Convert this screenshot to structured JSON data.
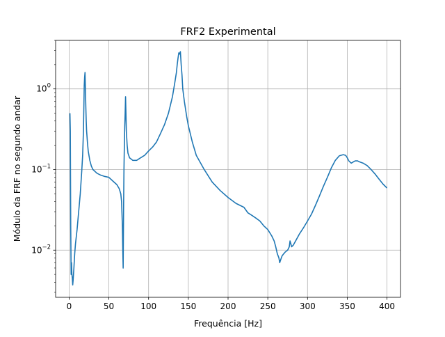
{
  "chart_data": {
    "type": "line",
    "title": "FRF2 Experimental",
    "xlabel": "Frequência [Hz]",
    "ylabel": "Módulo da FRF no segundo andar",
    "xlim": [
      -17,
      417
    ],
    "ylim": [
      0.0026,
      4.0
    ],
    "yscale": "log",
    "grid": true,
    "xticks": [
      0,
      50,
      100,
      150,
      200,
      250,
      300,
      350,
      400
    ],
    "xtick_labels": [
      "0",
      "50",
      "100",
      "150",
      "200",
      "250",
      "300",
      "350",
      "400"
    ],
    "yticks": [
      0.01,
      0.1,
      1
    ],
    "ytick_labels": [
      {
        "base": "10",
        "exp": "−2"
      },
      {
        "base": "10",
        "exp": "−1"
      },
      {
        "base": "10",
        "exp": "0"
      }
    ],
    "line_color": "#1f77b4",
    "series": [
      {
        "x": [
          1,
          1.5,
          2,
          2.5,
          3,
          3.5,
          4,
          4.5,
          5,
          6,
          7,
          8,
          10,
          12,
          14,
          16,
          17,
          18,
          19,
          19.5,
          20,
          20.5,
          21,
          21.5,
          22,
          23,
          24,
          26,
          28,
          30,
          35,
          40,
          45,
          50,
          55,
          60,
          63,
          65,
          66,
          67,
          67.5,
          68,
          68.5,
          69,
          69.5,
          70,
          70.5,
          71,
          71.5,
          72,
          73,
          74,
          76,
          78,
          80,
          85,
          90,
          95,
          100,
          105,
          110,
          115,
          120,
          125,
          130,
          133,
          135,
          136,
          137,
          138,
          139,
          140,
          141,
          142,
          143,
          145,
          148,
          150,
          155,
          160,
          170,
          180,
          190,
          200,
          210,
          220,
          225,
          230,
          235,
          240,
          245,
          250,
          255,
          258,
          260,
          262,
          263,
          264,
          265,
          266,
          268,
          270,
          272,
          275,
          277,
          278,
          279,
          280,
          282,
          285,
          290,
          295,
          300,
          305,
          310,
          315,
          320,
          325,
          330,
          335,
          340,
          345,
          348,
          350,
          352,
          355,
          358,
          360,
          363,
          365,
          370,
          375,
          380,
          385,
          390,
          395,
          400
        ],
        "y": [
          0.5,
          0.3,
          0.02,
          0.005,
          0.007,
          0.005,
          0.0045,
          0.0037,
          0.0042,
          0.006,
          0.009,
          0.012,
          0.018,
          0.03,
          0.05,
          0.1,
          0.15,
          0.3,
          1.1,
          1.4,
          1.6,
          1.0,
          0.6,
          0.4,
          0.3,
          0.22,
          0.17,
          0.13,
          0.11,
          0.1,
          0.09,
          0.085,
          0.082,
          0.08,
          0.072,
          0.065,
          0.058,
          0.05,
          0.04,
          0.02,
          0.01,
          0.006,
          0.03,
          0.1,
          0.2,
          0.35,
          0.5,
          0.8,
          0.5,
          0.3,
          0.2,
          0.16,
          0.14,
          0.135,
          0.13,
          0.13,
          0.14,
          0.15,
          0.17,
          0.19,
          0.22,
          0.28,
          0.36,
          0.5,
          0.8,
          1.2,
          1.6,
          2.0,
          2.4,
          2.8,
          2.7,
          2.9,
          2.0,
          1.5,
          1.0,
          0.7,
          0.45,
          0.35,
          0.22,
          0.15,
          0.1,
          0.07,
          0.055,
          0.045,
          0.038,
          0.034,
          0.029,
          0.027,
          0.025,
          0.023,
          0.02,
          0.018,
          0.015,
          0.013,
          0.011,
          0.009,
          0.0085,
          0.008,
          0.007,
          0.0075,
          0.0085,
          0.009,
          0.0095,
          0.01,
          0.011,
          0.013,
          0.012,
          0.011,
          0.0115,
          0.013,
          0.016,
          0.019,
          0.023,
          0.028,
          0.036,
          0.047,
          0.062,
          0.08,
          0.105,
          0.13,
          0.148,
          0.153,
          0.15,
          0.14,
          0.128,
          0.12,
          0.125,
          0.128,
          0.128,
          0.125,
          0.12,
          0.112,
          0.1,
          0.088,
          0.076,
          0.066,
          0.059
        ]
      }
    ]
  }
}
